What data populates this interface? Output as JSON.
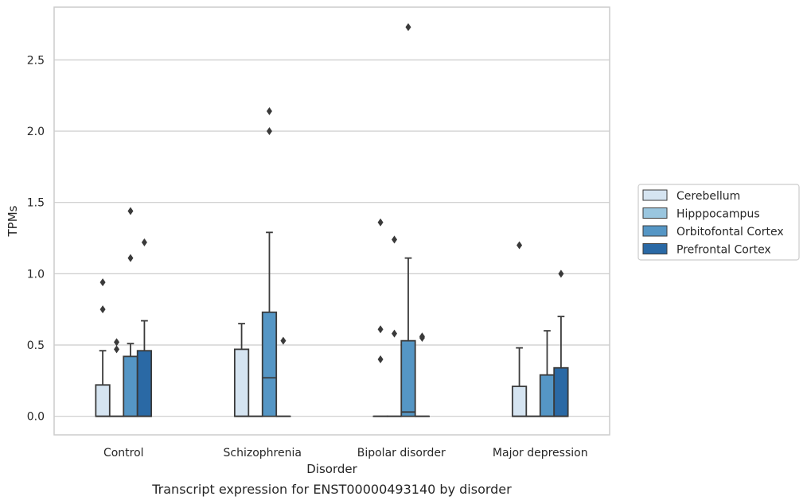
{
  "caption": "Transcript expression for ENST00000493140 by disorder",
  "chart_data": {
    "type": "box",
    "title": "",
    "xlabel": "Disorder",
    "ylabel": "TPMs",
    "categories": [
      "Control",
      "Schizophrenia",
      "Bipolar disorder",
      "Major depression"
    ],
    "ylim": [
      -0.13,
      2.87
    ],
    "yticks": [
      0.0,
      0.5,
      1.0,
      1.5,
      2.0,
      2.5
    ],
    "ytick_labels": [
      "0.0",
      "0.5",
      "1.0",
      "1.5",
      "2.0",
      "2.5"
    ],
    "grid": "horizontal",
    "legend_position": "right",
    "series": [
      {
        "name": "Cerebellum",
        "color": "#d5e4f1",
        "boxes": [
          {
            "q1": 0.0,
            "median": 0.0,
            "q3": 0.22,
            "whisker_low": 0.0,
            "whisker_high": 0.46,
            "fliers": [
              0.75,
              0.94
            ]
          },
          {
            "q1": 0.0,
            "median": 0.0,
            "q3": 0.47,
            "whisker_low": 0.0,
            "whisker_high": 0.65,
            "fliers": []
          },
          {
            "q1": 0.0,
            "median": 0.0,
            "q3": 0.0,
            "whisker_low": 0.0,
            "whisker_high": 0.0,
            "fliers": [
              0.4,
              0.61,
              1.36
            ]
          },
          {
            "q1": 0.0,
            "median": 0.0,
            "q3": 0.21,
            "whisker_low": 0.0,
            "whisker_high": 0.48,
            "fliers": [
              1.2
            ]
          }
        ]
      },
      {
        "name": "Hipppocampus",
        "color": "#9ac6df",
        "boxes": [
          {
            "q1": 0.0,
            "median": 0.0,
            "q3": 0.0,
            "whisker_low": 0.0,
            "whisker_high": 0.0,
            "fliers": [
              0.47,
              0.52
            ]
          },
          {
            "q1": 0.0,
            "median": 0.0,
            "q3": 0.0,
            "whisker_low": 0.0,
            "whisker_high": 0.0,
            "fliers": []
          },
          {
            "q1": 0.0,
            "median": 0.0,
            "q3": 0.0,
            "whisker_low": 0.0,
            "whisker_high": 0.0,
            "fliers": [
              0.58,
              1.24
            ]
          },
          {
            "q1": 0.0,
            "median": 0.0,
            "q3": 0.0,
            "whisker_low": 0.0,
            "whisker_high": 0.0,
            "fliers": []
          }
        ]
      },
      {
        "name": "Orbitofontal Cortex",
        "color": "#5596c5",
        "boxes": [
          {
            "q1": 0.0,
            "median": 0.0,
            "q3": 0.42,
            "whisker_low": 0.0,
            "whisker_high": 0.51,
            "fliers": [
              1.11,
              1.44
            ]
          },
          {
            "q1": 0.0,
            "median": 0.27,
            "q3": 0.73,
            "whisker_low": 0.0,
            "whisker_high": 1.29,
            "fliers": [
              2.0,
              2.14
            ]
          },
          {
            "q1": 0.0,
            "median": 0.03,
            "q3": 0.53,
            "whisker_low": 0.0,
            "whisker_high": 1.11,
            "fliers": [
              2.73
            ]
          },
          {
            "q1": 0.0,
            "median": 0.0,
            "q3": 0.29,
            "whisker_low": 0.0,
            "whisker_high": 0.6,
            "fliers": []
          }
        ]
      },
      {
        "name": "Prefrontal Cortex",
        "color": "#2a69a5",
        "boxes": [
          {
            "q1": 0.0,
            "median": 0.0,
            "q3": 0.46,
            "whisker_low": 0.0,
            "whisker_high": 0.67,
            "fliers": [
              1.22
            ]
          },
          {
            "q1": 0.0,
            "median": 0.0,
            "q3": 0.0,
            "whisker_low": 0.0,
            "whisker_high": 0.0,
            "fliers": [
              0.53
            ]
          },
          {
            "q1": 0.0,
            "median": 0.0,
            "q3": 0.0,
            "whisker_low": 0.0,
            "whisker_high": 0.0,
            "fliers": [
              0.55,
              0.56
            ]
          },
          {
            "q1": 0.0,
            "median": 0.0,
            "q3": 0.34,
            "whisker_low": 0.0,
            "whisker_high": 0.7,
            "fliers": [
              1.0
            ]
          }
        ]
      }
    ]
  }
}
